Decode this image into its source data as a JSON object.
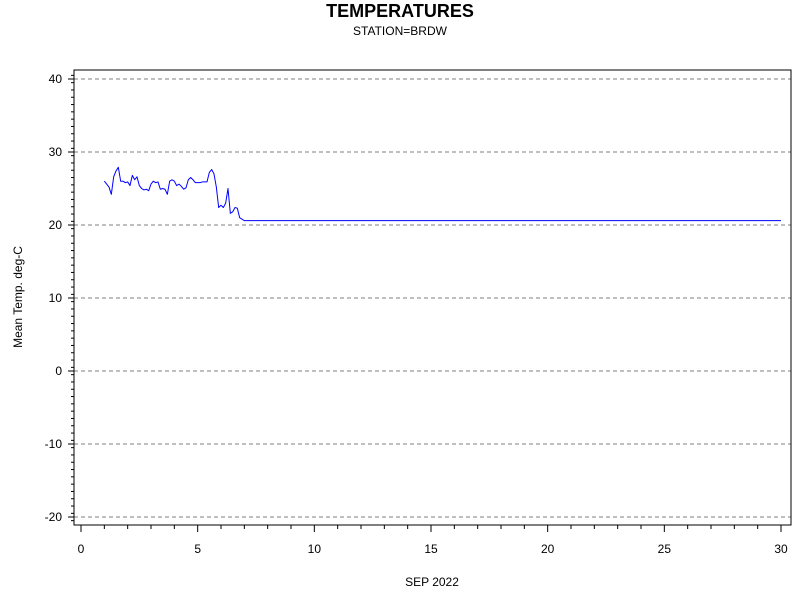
{
  "chart_data": {
    "type": "line",
    "title": "TEMPERATURES",
    "subtitle": "STATION=BRDW",
    "xlabel": "SEP 2022",
    "ylabel": "Mean Temp. deg-C",
    "xlim": [
      0,
      30.2
    ],
    "ylim": [
      -21.5,
      41
    ],
    "xticks": [
      0,
      5,
      10,
      15,
      20,
      25,
      30
    ],
    "yticks": [
      -20,
      -10,
      0,
      10,
      20,
      30,
      40
    ],
    "xtick_labels": [
      "0",
      "5",
      "10",
      "15",
      "20",
      "25",
      "30"
    ],
    "ytick_labels": [
      "-20",
      "-10",
      "0",
      "10",
      "20",
      "30",
      "40"
    ],
    "grid": "horizontal dashed",
    "line_color": "#0000ff",
    "series": [
      {
        "x": [
          1.0,
          1.1,
          1.2,
          1.3,
          1.4,
          1.5,
          1.6,
          1.7,
          1.8,
          1.9,
          2.0,
          2.1,
          2.2,
          2.3,
          2.4,
          2.5,
          2.6,
          2.7,
          2.8,
          2.9,
          3.0,
          3.1,
          3.2,
          3.3,
          3.4,
          3.5,
          3.6,
          3.7,
          3.8,
          3.9,
          4.0,
          4.1,
          4.2,
          4.3,
          4.4,
          4.5,
          4.6,
          4.7,
          4.8,
          4.9,
          5.0,
          5.1,
          5.2,
          5.3,
          5.4,
          5.5,
          5.6,
          5.7,
          5.8,
          5.9,
          6.0,
          6.1,
          6.2,
          6.3,
          6.4,
          6.5,
          6.6,
          6.7,
          6.8,
          6.9,
          7.0,
          7.1,
          7.2,
          7.3,
          7.4,
          7.5,
          7.6,
          7.7,
          7.8,
          7.9,
          8.0,
          8.1,
          8.2,
          8.3,
          8.5,
          9.0,
          10.0,
          15.0,
          20.0,
          25.0,
          30.0
        ],
        "y": [
          26.0,
          25.6,
          25.2,
          24.2,
          26.6,
          27.4,
          27.9,
          26.0,
          26.0,
          25.8,
          25.9,
          25.4,
          26.8,
          26.2,
          26.6,
          25.4,
          25.0,
          24.8,
          24.9,
          24.7,
          25.6,
          26.0,
          25.8,
          25.9,
          24.9,
          25.0,
          24.9,
          24.2,
          26.0,
          26.2,
          26.0,
          25.4,
          25.6,
          25.3,
          24.9,
          25.1,
          26.2,
          26.5,
          26.2,
          25.8,
          25.8,
          25.8,
          25.9,
          25.9,
          25.9,
          27.2,
          27.6,
          27.0,
          25.2,
          22.4,
          22.7,
          22.4,
          23.0,
          25.0,
          21.6,
          21.8,
          22.4,
          22.3,
          21.0,
          20.8,
          20.6,
          20.6,
          20.6,
          20.6,
          20.6,
          20.6,
          20.6,
          20.6,
          20.6,
          20.6,
          20.6,
          20.6,
          20.6,
          20.6,
          20.6,
          20.6,
          20.6,
          20.6,
          20.6,
          20.6,
          20.6
        ]
      }
    ]
  }
}
